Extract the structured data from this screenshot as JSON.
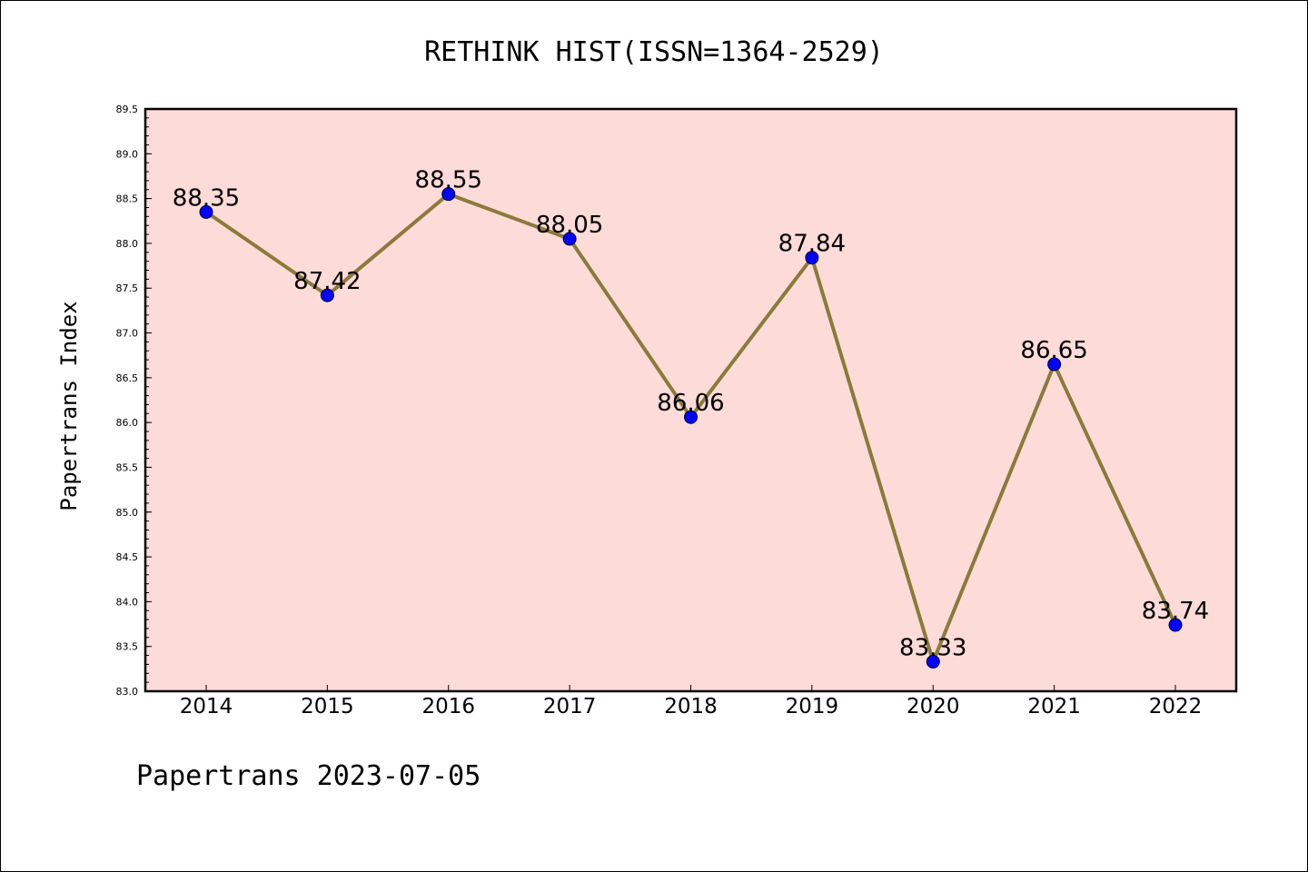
{
  "chart_data": {
    "type": "line",
    "title": "RETHINK HIST(ISSN=1364-2529)",
    "xlabel": "",
    "ylabel": "Papertrans Index",
    "categories": [
      "2014",
      "2015",
      "2016",
      "2017",
      "2018",
      "2019",
      "2020",
      "2021",
      "2022"
    ],
    "series": [
      {
        "values": [
          88.35,
          87.42,
          88.55,
          88.05,
          86.06,
          87.84,
          83.33,
          86.65,
          83.74
        ]
      }
    ],
    "data_labels": [
      "88.35",
      "87.42",
      "88.55",
      "88.05",
      "86.06",
      "87.84",
      "83.33",
      "86.65",
      "83.74"
    ],
    "ylim": [
      83.0,
      89.5
    ],
    "yticks": [
      "83.0",
      "83.5",
      "84.0",
      "84.5",
      "85.0",
      "85.5",
      "86.0",
      "86.5",
      "87.0",
      "87.5",
      "88.0",
      "88.5",
      "89.0",
      "89.5"
    ],
    "grid": false,
    "legend": "none",
    "colors": {
      "plot_background": "#fddbd8",
      "line": "#8b7a3a",
      "marker": "#0000ff"
    }
  },
  "footer": "Papertrans 2023-07-05"
}
